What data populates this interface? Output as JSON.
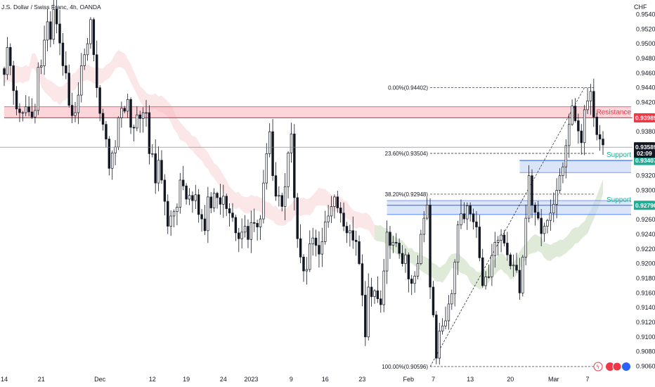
{
  "header": {
    "title": "J.S. Dollar / Swiss Franc, 4h, OANDA"
  },
  "chart_data": {
    "type": "candlestick",
    "currency_label": "CHF",
    "ylim": [
      0.904,
      0.955
    ],
    "y_ticks": [
      0.954,
      0.952,
      0.95,
      0.948,
      0.946,
      0.944,
      0.942,
      0.94,
      0.938,
      0.936,
      0.934,
      0.932,
      0.93,
      0.928,
      0.926,
      0.924,
      0.922,
      0.92,
      0.918,
      0.916,
      0.914,
      0.912,
      0.91,
      0.908,
      0.906
    ],
    "y_tick_labels": [
      "0.95400",
      "0.95200",
      "0.95000",
      "0.94800",
      "0.94600",
      "0.94400",
      "0.94200",
      "0.94000",
      "0.93800",
      "0.93600",
      "0.93400",
      "0.93200",
      "0.93000",
      "0.92800",
      "0.92600",
      "0.92400",
      "0.92200",
      "0.92000",
      "0.91800",
      "0.91600",
      "0.91400",
      "0.91200",
      "0.91000",
      "0.90800",
      "0.90600"
    ],
    "x_labels": [
      "14",
      "21",
      "Dec",
      "12",
      "19",
      "24",
      "2023",
      "9",
      "16",
      "23",
      "Feb",
      "7",
      "13",
      "20",
      "Mar",
      "7"
    ],
    "x_label_index": [
      0,
      12,
      31,
      48,
      59,
      71,
      80,
      93,
      104,
      116,
      131,
      139,
      151,
      164,
      178,
      189
    ],
    "n_bars": 195,
    "current_price": 0.93589,
    "countdown": "02:09",
    "close_prices": [
      0.9458,
      0.9495,
      0.947,
      0.9436,
      0.9411,
      0.9406,
      0.9406,
      0.9414,
      0.9407,
      0.94,
      0.9409,
      0.9468,
      0.947,
      0.9505,
      0.953,
      0.9506,
      0.9547,
      0.9527,
      0.9501,
      0.947,
      0.946,
      0.9416,
      0.9402,
      0.9406,
      0.943,
      0.947,
      0.9485,
      0.95,
      0.9533,
      0.9485,
      0.944,
      0.9405,
      0.939,
      0.937,
      0.933,
      0.9351,
      0.9359,
      0.9399,
      0.9412,
      0.9408,
      0.9424,
      0.9386,
      0.9385,
      0.9403,
      0.9398,
      0.9406,
      0.9406,
      0.935,
      0.935,
      0.931,
      0.9341,
      0.9314,
      0.9285,
      0.9251,
      0.9265,
      0.9271,
      0.9277,
      0.9314,
      0.9306,
      0.9288,
      0.9293,
      0.9286,
      0.9294,
      0.9267,
      0.9261,
      0.9245,
      0.9291,
      0.9276,
      0.9296,
      0.929,
      0.9281,
      0.9292,
      0.9275,
      0.9269,
      0.9263,
      0.9242,
      0.9234,
      0.9243,
      0.9251,
      0.9233,
      0.9256,
      0.9255,
      0.925,
      0.9261,
      0.931,
      0.935,
      0.938,
      0.932,
      0.9292,
      0.9293,
      0.9278,
      0.9305,
      0.9351,
      0.9377,
      0.929,
      0.9234,
      0.9209,
      0.919,
      0.9192,
      0.9227,
      0.9235,
      0.9225,
      0.9213,
      0.923,
      0.9257,
      0.9265,
      0.9278,
      0.9291,
      0.9276,
      0.9269,
      0.9251,
      0.9242,
      0.9245,
      0.9232,
      0.923,
      0.92,
      0.9157,
      0.91,
      0.9168,
      0.9155,
      0.9163,
      0.9152,
      0.9144,
      0.919,
      0.9243,
      0.9225,
      0.9229,
      0.9228,
      0.9214,
      0.92,
      0.9212,
      0.9179,
      0.9173,
      0.9183,
      0.92,
      0.924,
      0.9262,
      0.928,
      0.9168,
      0.913,
      0.9071,
      0.9108,
      0.9115,
      0.9122,
      0.9145,
      0.9159,
      0.9202,
      0.9253,
      0.9268,
      0.9261,
      0.9279,
      0.9268,
      0.9257,
      0.925,
      0.9208,
      0.917,
      0.9182,
      0.9182,
      0.9211,
      0.9229,
      0.9232,
      0.9239,
      0.9228,
      0.9212,
      0.9197,
      0.9198,
      0.9191,
      0.916,
      0.9209,
      0.9262,
      0.932,
      0.928,
      0.927,
      0.9262,
      0.9241,
      0.9251,
      0.9259,
      0.9269,
      0.9281,
      0.93,
      0.932,
      0.9332,
      0.9361,
      0.939,
      0.9415,
      0.9395,
      0.9381,
      0.9365,
      0.941,
      0.9422,
      0.9435,
      0.94,
      0.9376,
      0.937,
      0.9362,
      0.9359
    ],
    "fibonacci": [
      {
        "label": "0.00%(0.94402)",
        "value": 0.94402
      },
      {
        "label": "23.60%(0.93504)",
        "value": 0.93504
      },
      {
        "label": "38.20%(0.92948)",
        "value": 0.92948
      },
      {
        "label": "100.00%(0.90596)",
        "value": 0.90596
      }
    ],
    "zones": [
      {
        "name": "Resistance",
        "line": 0.93989,
        "top": 0.9414,
        "bottom": 0.93989,
        "color": "#f23645",
        "fill": "#f7b3b9",
        "label_color": "#f23645"
      },
      {
        "name": "Support",
        "line": 0.93407,
        "top": 0.93407,
        "bottom": 0.93243,
        "color": "#2962ff",
        "fill": "#bbd0f5",
        "label_color": "#22ab94"
      },
      {
        "name": "Support",
        "line": 0.92796,
        "top": 0.9286,
        "bottom": 0.9267,
        "color": "#2962ff",
        "fill": "#bbd0f5",
        "label_color": "#22ab94"
      }
    ],
    "price_badges": [
      {
        "text": "0.93989",
        "value": 0.93989,
        "color": "#f23645"
      },
      {
        "text": "0.93407",
        "value": 0.93407,
        "color": "#22ab94"
      },
      {
        "text": "0.92796",
        "value": 0.92796,
        "color": "#22ab94"
      }
    ]
  }
}
